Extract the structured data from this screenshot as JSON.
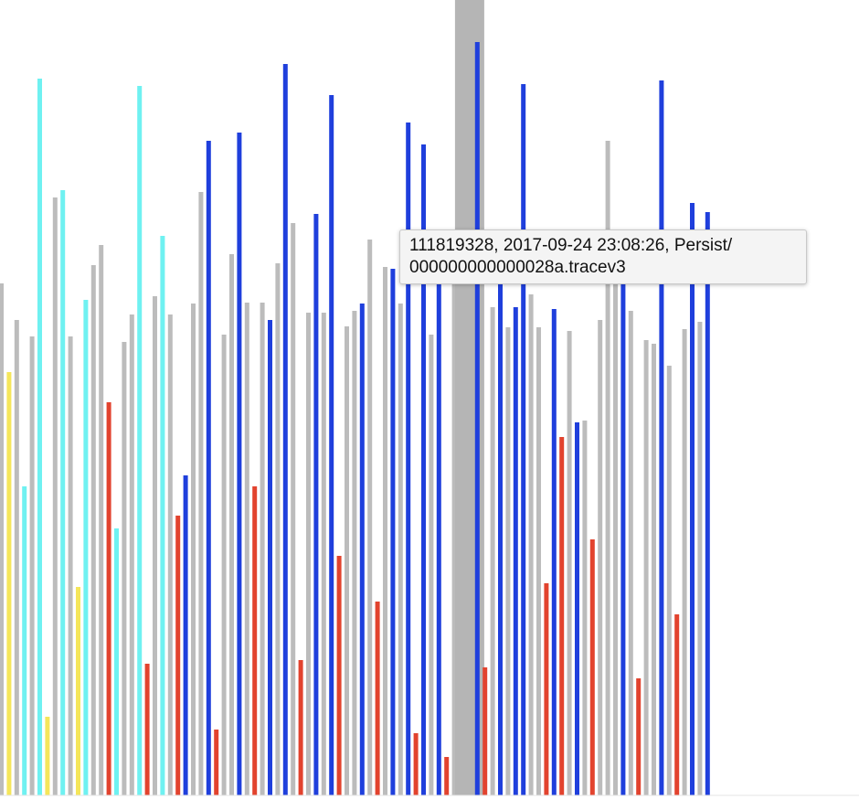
{
  "colors": {
    "gray": "#bcbcbc",
    "blue": "#1f3fdc",
    "red": "#e2432e",
    "cyan": "#6ff1f1",
    "yellow": "#f5e65a",
    "highlight": "#b5b5b5"
  },
  "tooltip": {
    "line1": "111819328, 2017-09-24 23:08:26, Persist/",
    "line2": "000000000000028a.tracev3"
  },
  "chart_data": {
    "type": "bar",
    "grid": false,
    "highlighted_bar": 61,
    "ylim": [
      0,
      870
    ],
    "bars": [
      {
        "color": "gray",
        "value": 560
      },
      {
        "color": "yellow",
        "value": 463
      },
      {
        "color": "gray",
        "value": 520
      },
      {
        "color": "cyan",
        "value": 338
      },
      {
        "color": "gray",
        "value": 502
      },
      {
        "color": "cyan",
        "value": 784
      },
      {
        "color": "yellow",
        "value": 86
      },
      {
        "color": "gray",
        "value": 654
      },
      {
        "color": "cyan",
        "value": 662
      },
      {
        "color": "gray",
        "value": 502
      },
      {
        "color": "yellow",
        "value": 228
      },
      {
        "color": "cyan",
        "value": 542
      },
      {
        "color": "gray",
        "value": 580
      },
      {
        "color": "gray",
        "value": 602
      },
      {
        "color": "red",
        "value": 430
      },
      {
        "color": "cyan",
        "value": 292
      },
      {
        "color": "gray",
        "value": 496
      },
      {
        "color": "gray",
        "value": 526
      },
      {
        "color": "cyan",
        "value": 776
      },
      {
        "color": "red",
        "value": 144
      },
      {
        "color": "gray",
        "value": 546
      },
      {
        "color": "cyan",
        "value": 612
      },
      {
        "color": "gray",
        "value": 526
      },
      {
        "color": "red",
        "value": 306
      },
      {
        "color": "blue",
        "value": 350
      },
      {
        "color": "gray",
        "value": 538
      },
      {
        "color": "gray",
        "value": 660
      },
      {
        "color": "blue",
        "value": 716
      },
      {
        "color": "red",
        "value": 72
      },
      {
        "color": "gray",
        "value": 504
      },
      {
        "color": "gray",
        "value": 592
      },
      {
        "color": "blue",
        "value": 725
      },
      {
        "color": "gray",
        "value": 539
      },
      {
        "color": "red",
        "value": 338
      },
      {
        "color": "gray",
        "value": 539
      },
      {
        "color": "blue",
        "value": 520
      },
      {
        "color": "gray",
        "value": 582
      },
      {
        "color": "blue",
        "value": 800
      },
      {
        "color": "gray",
        "value": 626
      },
      {
        "color": "red",
        "value": 148
      },
      {
        "color": "gray",
        "value": 528
      },
      {
        "color": "blue",
        "value": 636
      },
      {
        "color": "gray",
        "value": 528
      },
      {
        "color": "blue",
        "value": 766
      },
      {
        "color": "red",
        "value": 262
      },
      {
        "color": "gray",
        "value": 513
      },
      {
        "color": "gray",
        "value": 530
      },
      {
        "color": "blue",
        "value": 538
      },
      {
        "color": "gray",
        "value": 608
      },
      {
        "color": "red",
        "value": 212
      },
      {
        "color": "gray",
        "value": 578
      },
      {
        "color": "blue",
        "value": 576
      },
      {
        "color": "gray",
        "value": 538
      },
      {
        "color": "blue",
        "value": 736
      },
      {
        "color": "red",
        "value": 68
      },
      {
        "color": "blue",
        "value": 712
      },
      {
        "color": "gray",
        "value": 504
      },
      {
        "color": "blue",
        "value": 616
      },
      {
        "color": "red",
        "value": 42
      },
      {
        "color": "gray",
        "value": 566
      },
      {
        "color": "blue",
        "value": 794
      },
      {
        "color": "highlight",
        "value": 870
      },
      {
        "color": "blue",
        "value": 824
      },
      {
        "color": "red",
        "value": 140
      },
      {
        "color": "gray",
        "value": 534
      },
      {
        "color": "blue",
        "value": 614
      },
      {
        "color": "gray",
        "value": 512
      },
      {
        "color": "blue",
        "value": 534
      },
      {
        "color": "blue",
        "value": 778
      },
      {
        "color": "gray",
        "value": 548
      },
      {
        "color": "gray",
        "value": 512
      },
      {
        "color": "red",
        "value": 232
      },
      {
        "color": "blue",
        "value": 532
      },
      {
        "color": "red",
        "value": 392
      },
      {
        "color": "gray",
        "value": 508
      },
      {
        "color": "blue",
        "value": 408
      },
      {
        "color": "gray",
        "value": 410
      },
      {
        "color": "red",
        "value": 280
      },
      {
        "color": "gray",
        "value": 520
      },
      {
        "color": "gray",
        "value": 716
      },
      {
        "color": "gray",
        "value": 580
      },
      {
        "color": "blue",
        "value": 608
      },
      {
        "color": "gray",
        "value": 530
      },
      {
        "color": "red",
        "value": 128
      },
      {
        "color": "gray",
        "value": 498
      },
      {
        "color": "gray",
        "value": 494
      },
      {
        "color": "blue",
        "value": 782
      },
      {
        "color": "gray",
        "value": 470
      },
      {
        "color": "red",
        "value": 198
      },
      {
        "color": "gray",
        "value": 510
      },
      {
        "color": "blue",
        "value": 648
      },
      {
        "color": "gray",
        "value": 518
      },
      {
        "color": "blue",
        "value": 638
      }
    ]
  }
}
